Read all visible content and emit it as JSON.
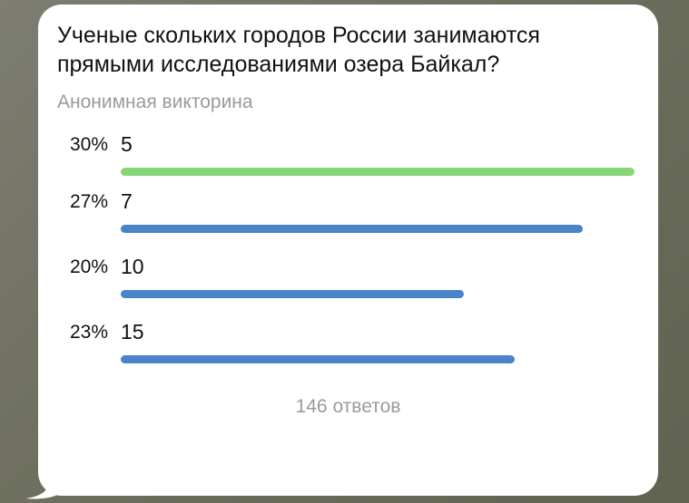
{
  "poll": {
    "question": "Ученые скольких городов России занимаются прямыми исследованиями озера Байкал?",
    "type_label": "Анонимная викторина",
    "total_label": "146 ответов",
    "options": [
      {
        "percent_label": "30%",
        "text": "5",
        "fraction": 1.0,
        "color": "#86d676",
        "correct": true
      },
      {
        "percent_label": "27%",
        "text": "7",
        "fraction": 0.9,
        "color": "#4a84c8",
        "correct": false
      },
      {
        "percent_label": "20%",
        "text": "10",
        "fraction": 0.667,
        "color": "#4a84c8",
        "correct": false
      },
      {
        "percent_label": "23%",
        "text": "15",
        "fraction": 0.767,
        "color": "#4a84c8",
        "correct": false
      }
    ]
  }
}
